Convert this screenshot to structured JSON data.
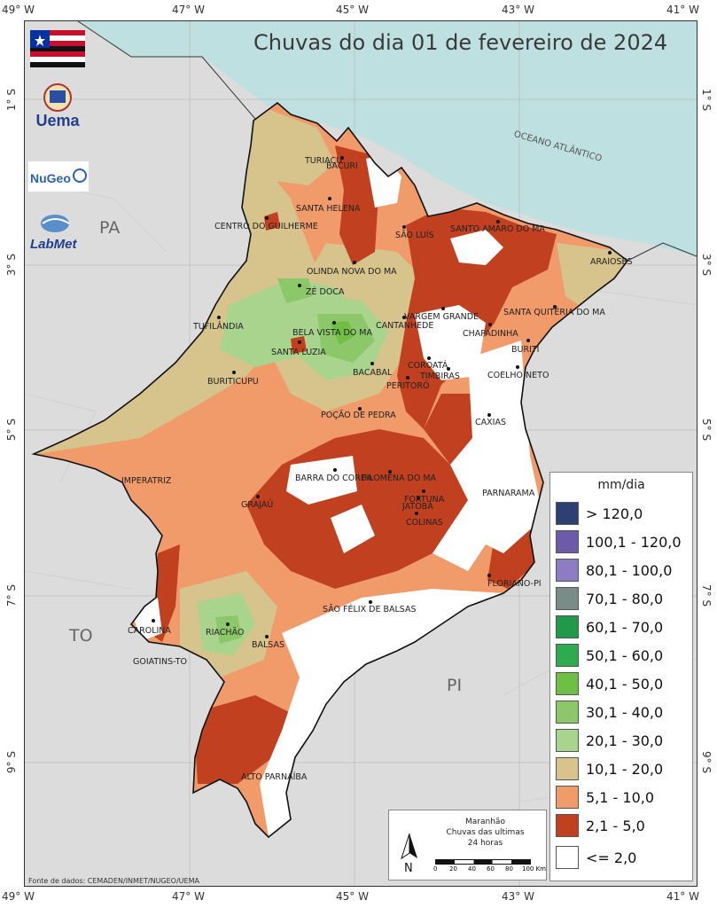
{
  "title": "Chuvas do dia 01 de fevereiro de 2024",
  "axes": {
    "longitudes": [
      "49° W",
      "47° W",
      "45° W",
      "43° W",
      "41° W"
    ],
    "latitudes": [
      "1° S",
      "3° S",
      "5° S",
      "7° S",
      "9° S"
    ]
  },
  "regions": {
    "pa": "PA",
    "to": "TO",
    "pi": "PI"
  },
  "ocean_label": "OCEANO ATLÂNTICO",
  "cities": [
    "TURIAÇU",
    "BACURI",
    "SANTA HELENA",
    "CENTRO DO GUILHERME",
    "SÃO LUÍS",
    "SANTO AMARO DO MA",
    "ARAIOSES",
    "OLINDA NOVA DO MA",
    "ZÉ DOCA",
    "VARGEM GRANDE",
    "SANTA QUITÉRIA DO MA",
    "TUFILÂNDIA",
    "BELA VISTA DO MA",
    "CANTANHEDE",
    "CHAPADINHA",
    "SANTA LUZIA",
    "BURITI",
    "BACABAL",
    "COROATÁ",
    "BURITICUPU",
    "PERITORÓ",
    "TIMBIRAS",
    "COELHO NETO",
    "POÇÃO DE PEDRA",
    "CAXIAS",
    "BARRA DO CORDA",
    "FILOMENA DO MA",
    "IMPERATRIZ",
    "FORTUNA",
    "GRAJAÚ",
    "JATOBÁ",
    "PARNARAMA",
    "COLINAS",
    "FLORIANO-PI",
    "SÃO FÉLIX DE BALSAS",
    "CAROLINA",
    "RIACHÃO",
    "BALSAS",
    "GOIATINS-TO",
    "ALTO PARNAÍBA"
  ],
  "legend": {
    "title": "mm/dia",
    "items": [
      {
        "label": "> 120,0",
        "color": "#2e3f73"
      },
      {
        "label": "100,1 - 120,0",
        "color": "#6b5ba8"
      },
      {
        "label": "80,1 - 100,0",
        "color": "#8b7cc4"
      },
      {
        "label": "70,1 - 80,0",
        "color": "#7a8c87"
      },
      {
        "label": "60,1 - 70,0",
        "color": "#1e9a4a"
      },
      {
        "label": "50,1 - 60,0",
        "color": "#2eab4f"
      },
      {
        "label": "40,1 - 50,0",
        "color": "#6fbf45"
      },
      {
        "label": "30,1 - 40,0",
        "color": "#8cc86a"
      },
      {
        "label": "20,1 - 30,0",
        "color": "#a9d48d"
      },
      {
        "label": "10,1 - 20,0",
        "color": "#d6c48c"
      },
      {
        "label": "5,1 - 10,0",
        "color": "#f19a6a"
      },
      {
        "label": "2,1 - 5,0",
        "color": "#c0401f"
      },
      {
        "label": "<= 2,0",
        "color": "#ffffff"
      }
    ]
  },
  "scalebox": {
    "line1": "Maranhão",
    "line2": "Chuvas das ultimas",
    "line3": "24 horas",
    "north": "N",
    "scale_ticks": [
      "0",
      "20",
      "40",
      "60",
      "80",
      "100 Km"
    ]
  },
  "logos": {
    "uema": "Uema",
    "nugeo": "NuGeo",
    "labmet": "LabMet"
  },
  "credit": "Fonte de dados: CEMADEN/INMET/NUGEO/UEMA",
  "colors": {
    "ocean": "#bfe0e0",
    "land": "#dcdcdc",
    "state_base": "#f19a6a"
  }
}
